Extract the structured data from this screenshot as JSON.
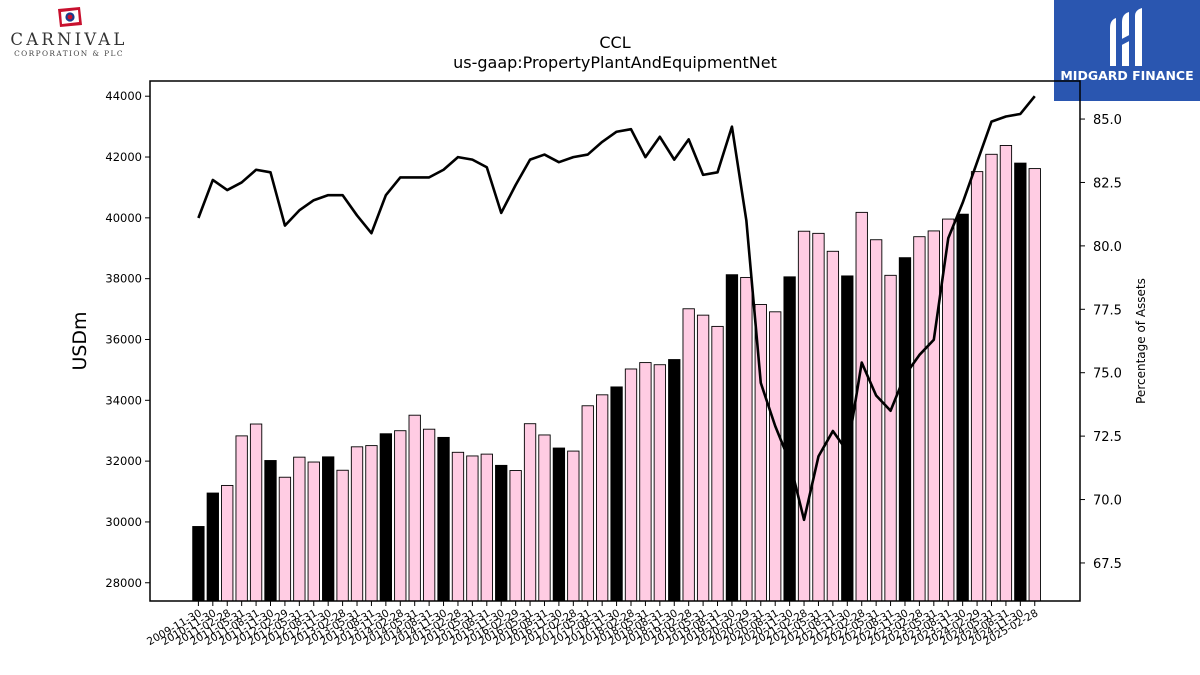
{
  "logos": {
    "left": {
      "word": "CARNIVAL",
      "sub": "CORPORATION & PLC"
    },
    "right": {
      "text": "MIDGARD FINANCE"
    }
  },
  "chart_data": {
    "type": "bar",
    "title": "CCL",
    "subtitle": "us-gaap:PropertyPlantAndEquipmentNet",
    "ylabel": "USDm",
    "y2label": "Percentage of Assets",
    "ylim": [
      27400,
      44500
    ],
    "y2lim": [
      66.0,
      86.5
    ],
    "yticks": [
      28000,
      30000,
      32000,
      34000,
      36000,
      38000,
      40000,
      42000,
      44000
    ],
    "y2ticks": [
      "67.5",
      "70.0",
      "72.5",
      "75.0",
      "77.5",
      "80.0",
      "82.5",
      "85.0"
    ],
    "colors": {
      "annual_bar": "#000000",
      "quarter_bar": "#ffcce3",
      "bar_edge": "#000000",
      "line": "#000000"
    },
    "categories": [
      "2009-11-30",
      "2010-11-30",
      "2011-02-28",
      "2011-05-31",
      "2011-08-31",
      "2011-11-30",
      "2012-02-29",
      "2012-05-31",
      "2012-08-31",
      "2012-11-30",
      "2013-02-28",
      "2013-05-31",
      "2013-08-31",
      "2013-11-30",
      "2014-02-28",
      "2014-05-31",
      "2014-08-31",
      "2014-11-30",
      "2015-02-28",
      "2015-05-31",
      "2015-08-31",
      "2015-11-30",
      "2016-02-29",
      "2016-05-31",
      "2016-08-31",
      "2016-11-30",
      "2017-02-28",
      "2017-05-31",
      "2017-08-31",
      "2017-11-30",
      "2018-02-28",
      "2018-05-31",
      "2018-08-31",
      "2018-11-30",
      "2019-02-28",
      "2019-05-31",
      "2019-08-31",
      "2019-11-30",
      "2020-02-29",
      "2020-05-31",
      "2020-08-31",
      "2020-11-30",
      "2021-02-28",
      "2021-05-31",
      "2021-08-31",
      "2021-11-30",
      "2022-02-28",
      "2022-05-31",
      "2022-08-31",
      "2022-11-30",
      "2023-02-28",
      "2023-05-31",
      "2023-08-31",
      "2023-11-30",
      "2024-02-29",
      "2024-05-31",
      "2024-08-31",
      "2024-11-30",
      "2025-02-28"
    ],
    "annual": [
      true,
      true,
      false,
      false,
      false,
      true,
      false,
      false,
      false,
      true,
      false,
      false,
      false,
      true,
      false,
      false,
      false,
      true,
      false,
      false,
      false,
      true,
      false,
      false,
      false,
      true,
      false,
      false,
      false,
      true,
      false,
      false,
      false,
      true,
      false,
      false,
      false,
      true,
      false,
      false,
      false,
      true,
      false,
      false,
      false,
      true,
      false,
      false,
      false,
      true,
      false,
      false,
      false,
      true,
      false,
      false,
      false,
      true,
      false
    ],
    "series": [
      {
        "name": "USDm",
        "values": [
          29850,
          30950,
          31200,
          32830,
          33220,
          32020,
          31470,
          32130,
          31970,
          32140,
          31700,
          32470,
          32510,
          32900,
          33000,
          33510,
          33050,
          32780,
          32290,
          32170,
          32230,
          31860,
          31690,
          33230,
          32860,
          32430,
          32330,
          33820,
          34180,
          34440,
          35030,
          35240,
          35170,
          35340,
          37010,
          36800,
          36430,
          38130,
          38040,
          37150,
          36910,
          38060,
          39560,
          39490,
          38900,
          38090,
          40180,
          39280,
          38110,
          38690,
          39380,
          39570,
          39960,
          40120,
          41520,
          42090,
          42380,
          41800,
          41620
        ]
      },
      {
        "name": "Percentage of Assets",
        "values": [
          81.1,
          82.6,
          82.2,
          82.5,
          83.0,
          82.9,
          80.8,
          81.4,
          81.8,
          82.0,
          82.0,
          81.2,
          80.5,
          82.0,
          82.7,
          82.7,
          82.7,
          83.0,
          83.5,
          83.4,
          83.1,
          81.3,
          82.4,
          83.4,
          83.6,
          83.3,
          83.5,
          83.6,
          84.1,
          84.5,
          84.6,
          83.5,
          84.3,
          83.4,
          84.2,
          82.8,
          82.9,
          84.7,
          81.0,
          74.6,
          72.9,
          71.5,
          69.2,
          71.7,
          72.7,
          71.9,
          75.4,
          74.1,
          73.5,
          74.9,
          75.7,
          76.3,
          80.3,
          81.7,
          83.3,
          84.9,
          85.1,
          85.2,
          85.9
        ]
      }
    ]
  }
}
